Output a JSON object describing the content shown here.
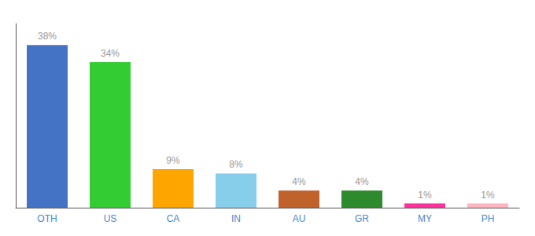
{
  "chart_data": {
    "type": "bar",
    "categories": [
      "OTH",
      "US",
      "CA",
      "IN",
      "AU",
      "GR",
      "MY",
      "PH"
    ],
    "values": [
      38,
      34,
      9,
      8,
      4,
      4,
      1,
      1
    ],
    "value_labels": [
      "38%",
      "34%",
      "9%",
      "8%",
      "4%",
      "4%",
      "1%",
      "1%"
    ],
    "colors": [
      "#4472C4",
      "#33CC33",
      "#FFA500",
      "#87CEEB",
      "#C0622B",
      "#2D8A2D",
      "#FF3399",
      "#FFB6C1"
    ],
    "ylim": [
      0,
      43
    ],
    "grid": false,
    "data_labels": true,
    "tick_labels": "x"
  }
}
